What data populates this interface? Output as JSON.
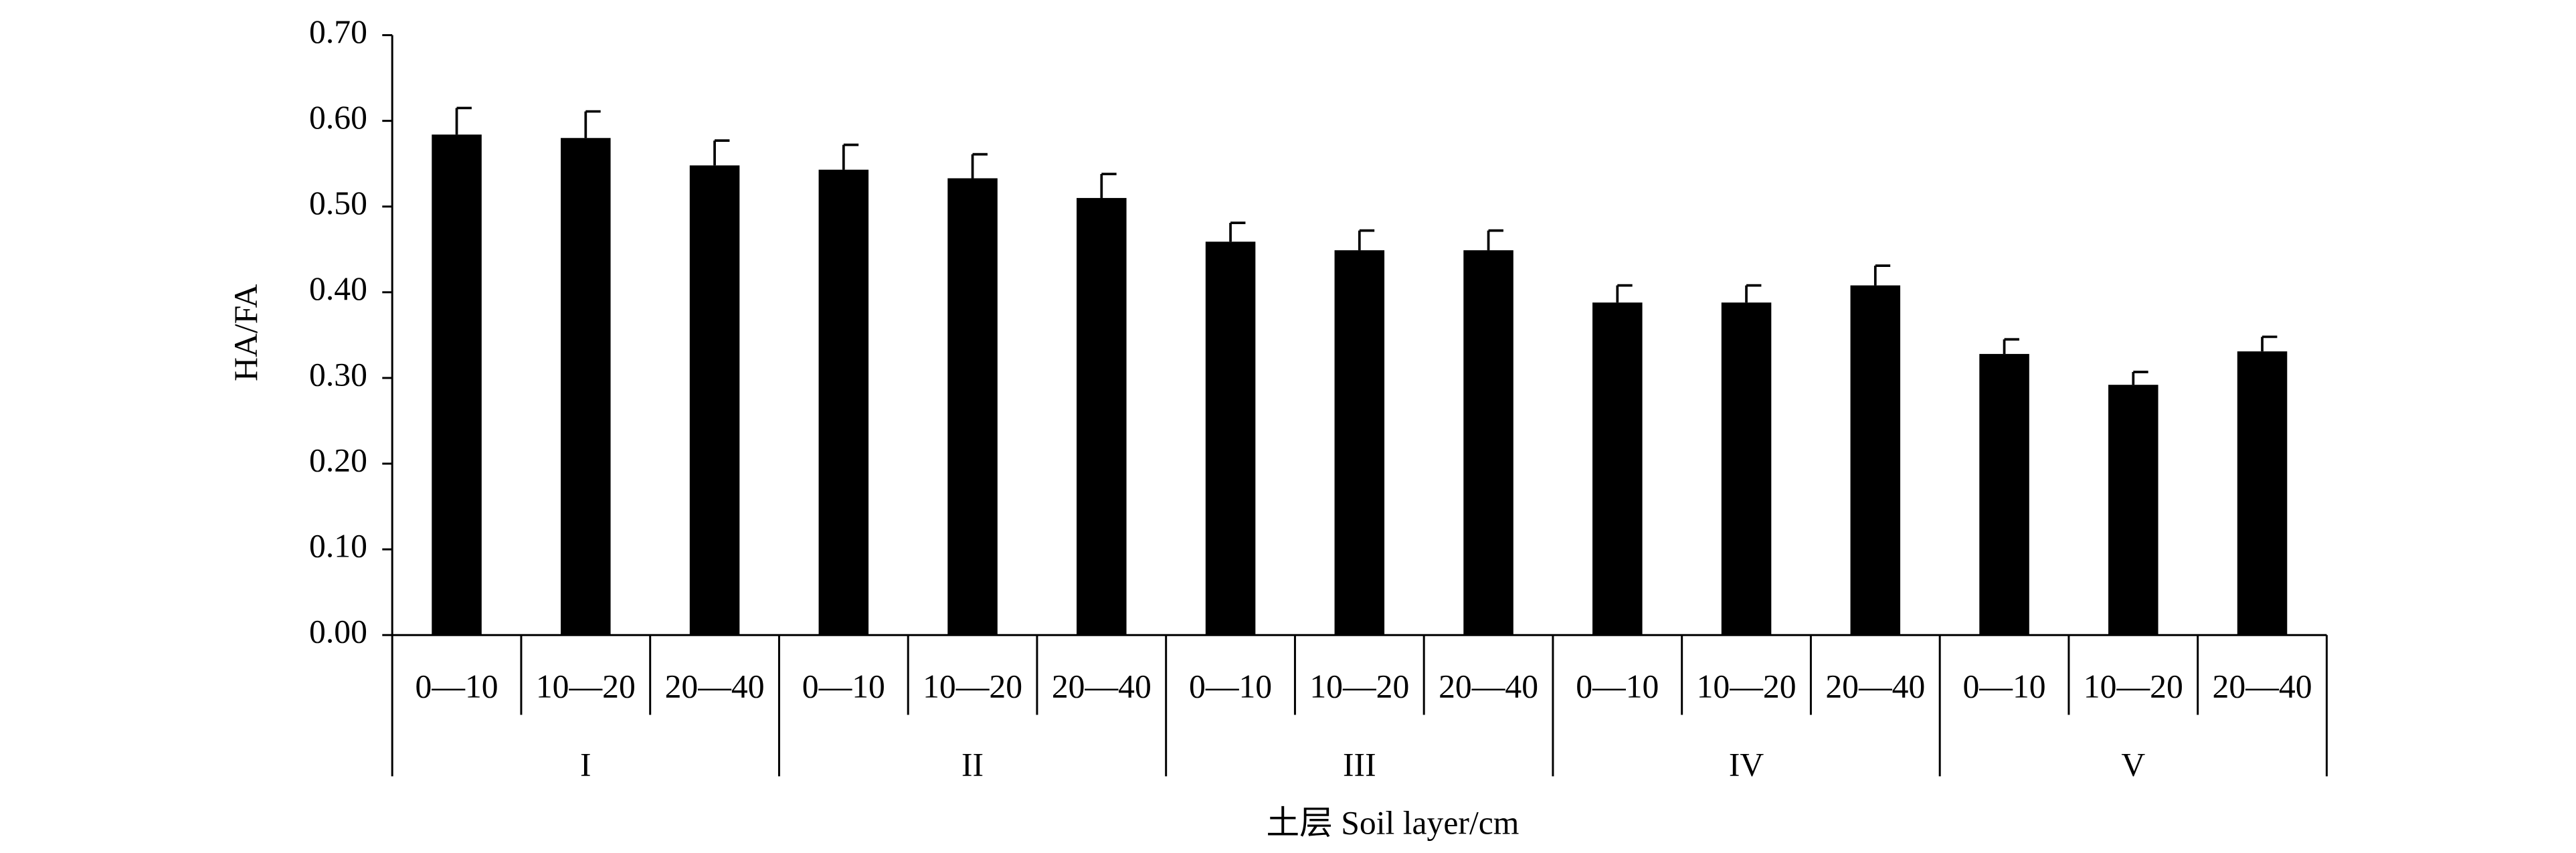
{
  "chart_data": {
    "type": "bar",
    "y_label": "HA/FA",
    "x_label": "土层 Soil layer/cm",
    "categories": [
      "0—10",
      "10—20",
      "20—40",
      "0—10",
      "10—20",
      "20—40",
      "0—10",
      "10—20",
      "20—40",
      "0—10",
      "10—20",
      "20—40",
      "0—10",
      "10—20",
      "20—40"
    ],
    "groups": [
      "I",
      "II",
      "III",
      "IV",
      "V"
    ],
    "values": [
      0.584,
      0.58,
      0.548,
      0.543,
      0.533,
      0.51,
      0.459,
      0.449,
      0.449,
      0.388,
      0.388,
      0.408,
      0.328,
      0.292,
      0.331
    ],
    "errors": [
      0.031,
      0.031,
      0.029,
      0.029,
      0.028,
      0.028,
      0.022,
      0.023,
      0.023,
      0.02,
      0.02,
      0.023,
      0.017,
      0.015,
      0.017
    ],
    "color": "#000000",
    "ylim": [
      0,
      0.7
    ],
    "yticks": [
      {
        "value": 0,
        "label": "0.00"
      },
      {
        "value": 0.1,
        "label": "0.10"
      },
      {
        "value": 0.2,
        "label": "0.20"
      },
      {
        "value": 0.3,
        "label": "0.30"
      },
      {
        "value": 0.4,
        "label": "0.40"
      },
      {
        "value": 0.5,
        "label": "0.50"
      },
      {
        "value": 0.6,
        "label": "0.60"
      },
      {
        "value": 0.7,
        "label": "0.70"
      }
    ],
    "grid": false
  }
}
